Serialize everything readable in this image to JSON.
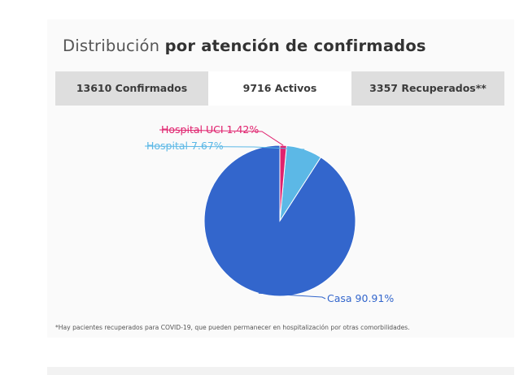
{
  "title": {
    "light": "Distribución ",
    "bold": "por atención de confirmados"
  },
  "tabs": [
    {
      "label": "13610 Confirmados",
      "active": false
    },
    {
      "label": "9716 Activos",
      "active": true
    },
    {
      "label": "3357 Recuperados**",
      "active": false
    }
  ],
  "chart_data": {
    "type": "pie",
    "slices": [
      {
        "label": "Casa",
        "value": 90.91,
        "display": "Casa 90.91%",
        "color": "#3366cc"
      },
      {
        "label": "Hospital",
        "value": 7.67,
        "display": "Hospital 7.67%",
        "color": "#5cb8e6"
      },
      {
        "label": "Hospital UCI",
        "value": 1.42,
        "display": "Hospital UCI 1.42%",
        "color": "#e0226e"
      }
    ],
    "start": "12 o'clock",
    "direction": "counter-clockwise",
    "legend": "none"
  },
  "footnote": "*Hay pacientes recuperados para COVID-19, que pueden permanecer en hospitalización por otras comorbilidades."
}
